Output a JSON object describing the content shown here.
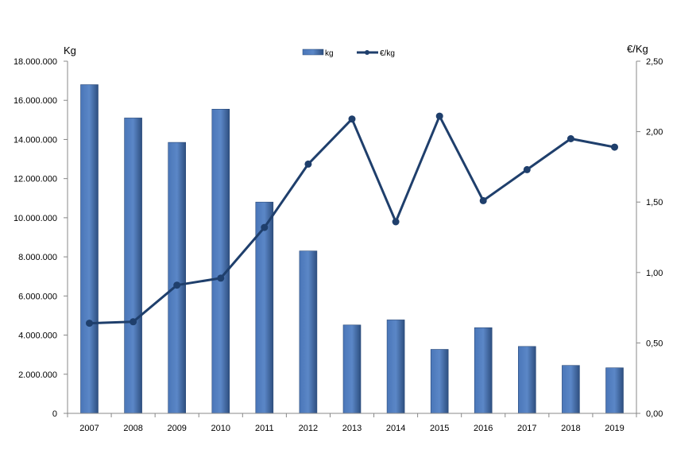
{
  "chart_data": {
    "type": "bar+line",
    "categories": [
      "2007",
      "2008",
      "2009",
      "2010",
      "2011",
      "2012",
      "2013",
      "2014",
      "2015",
      "2016",
      "2017",
      "2018",
      "2019"
    ],
    "series": [
      {
        "name": "kg",
        "type": "bar",
        "axis": "left",
        "color": "#5b87c7",
        "values": [
          16800000,
          15100000,
          13850000,
          15550000,
          10800000,
          8300000,
          4520000,
          4780000,
          3270000,
          4380000,
          3420000,
          2450000,
          2330000
        ]
      },
      {
        "name": "€/kg",
        "type": "line",
        "axis": "right",
        "color": "#1f3f6c",
        "values": [
          0.64,
          0.65,
          0.91,
          0.96,
          1.32,
          1.77,
          2.09,
          1.36,
          2.11,
          1.51,
          1.73,
          1.95,
          1.89
        ]
      }
    ],
    "y_left": {
      "label": "Kg",
      "ylim": [
        0,
        18000000
      ],
      "ticks": [
        "0",
        "2.000.000",
        "4.000.000",
        "6.000.000",
        "8.000.000",
        "10.000.000",
        "12.000.000",
        "14.000.000",
        "16.000.000",
        "18.000.000"
      ]
    },
    "y_right": {
      "label": "€/Kg",
      "ylim": [
        0,
        2.5
      ],
      "ticks": [
        "0,00",
        "0,50",
        "1,00",
        "1,50",
        "2,00",
        "2,50"
      ]
    },
    "grid": false,
    "legend": "top-center"
  }
}
